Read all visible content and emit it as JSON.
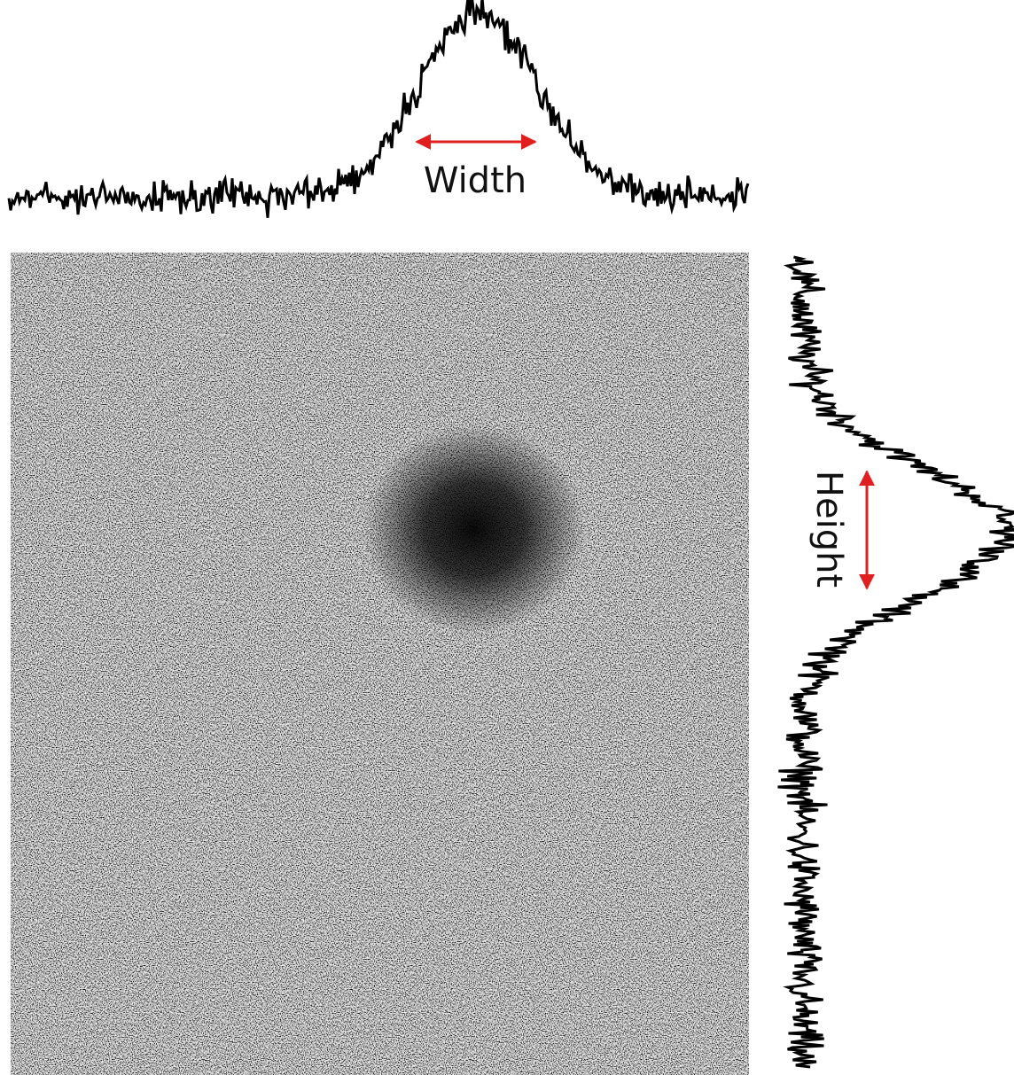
{
  "labels": {
    "width": "Width",
    "height": "Height"
  }
}
